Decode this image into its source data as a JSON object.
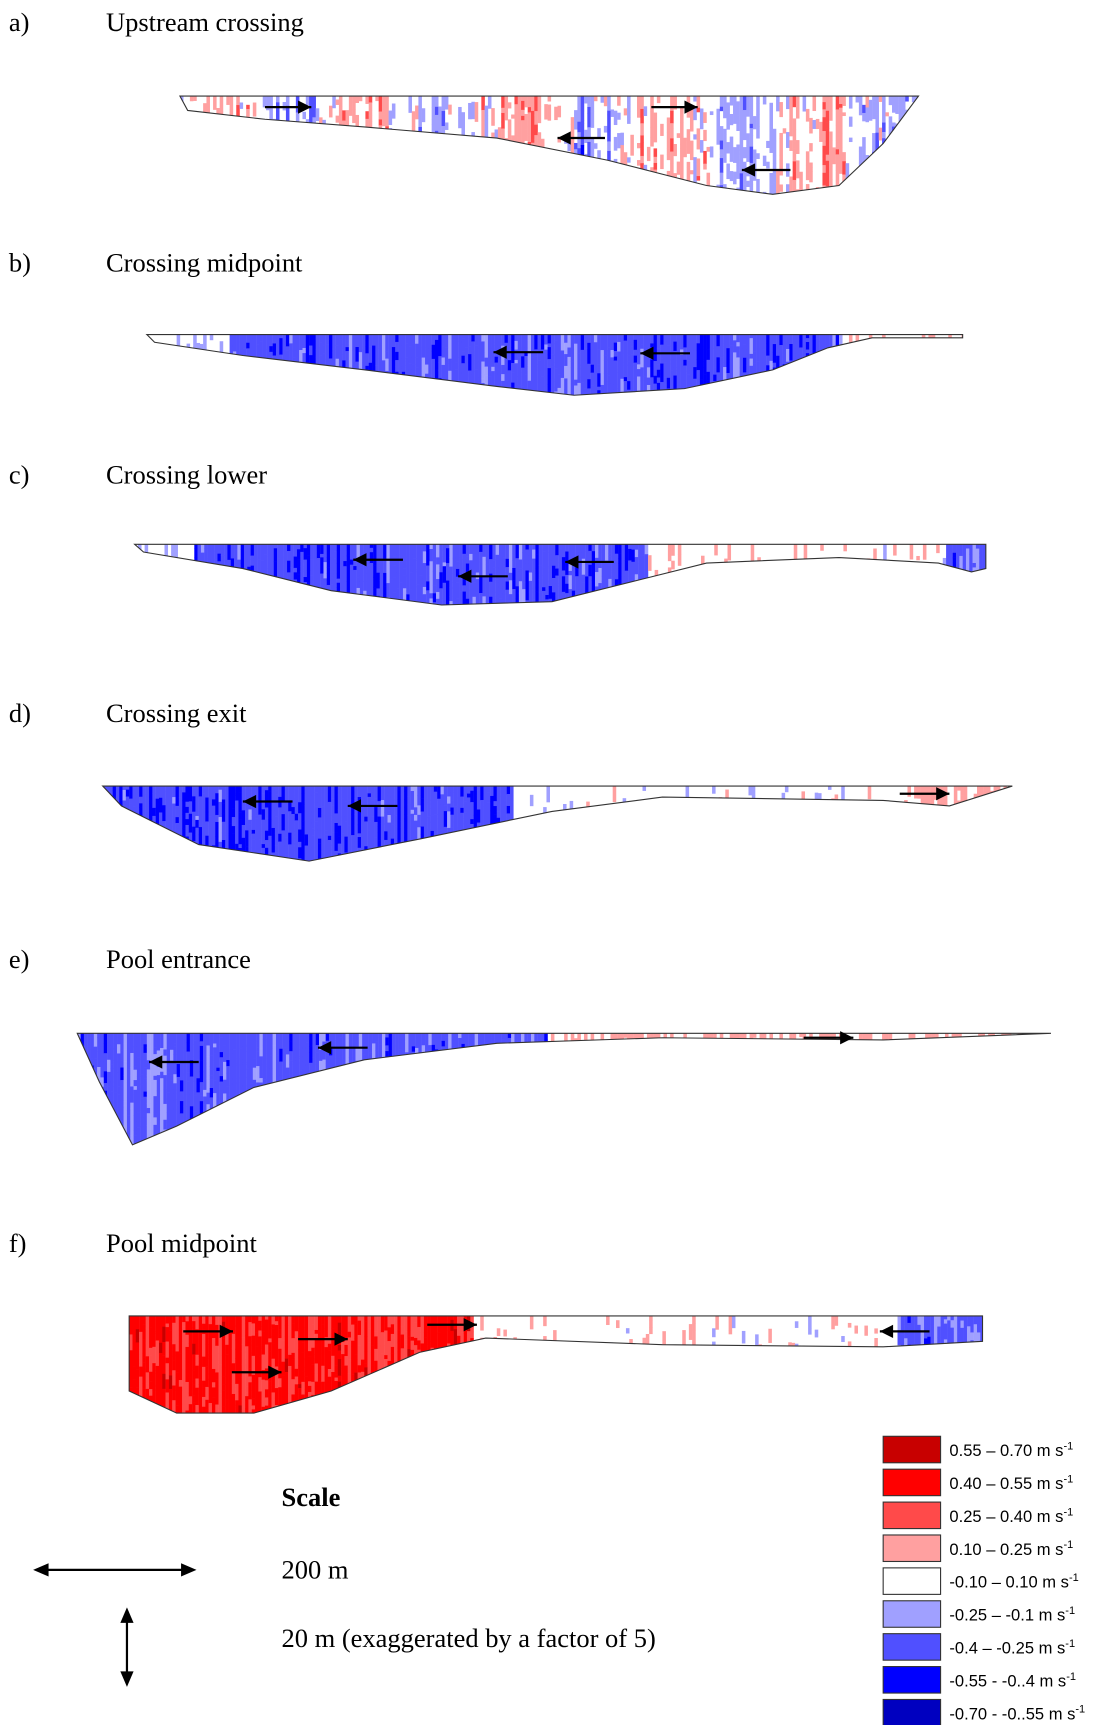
{
  "panels": [
    {
      "letter": "a)",
      "title": "Upstream crossing"
    },
    {
      "letter": "b)",
      "title": "Crossing midpoint"
    },
    {
      "letter": "c)",
      "title": "Crossing lower"
    },
    {
      "letter": "d)",
      "title": "Crossing exit"
    },
    {
      "letter": "e)",
      "title": "Pool entrance"
    },
    {
      "letter": "f)",
      "title": "Pool midpoint"
    }
  ],
  "scale": {
    "title": "Scale",
    "horizontal": "200 m",
    "vertical": "20 m (exaggerated by a factor of 5)"
  },
  "legend": [
    {
      "label": "0.55 – 0.70 m s",
      "exponent": "-1",
      "color": "#c80000"
    },
    {
      "label": "0.40 – 0.55 m s",
      "exponent": "-1",
      "color": "#ff0000"
    },
    {
      "label": "0.25 – 0.40 m s",
      "exponent": "-1",
      "color": "#ff4a4a"
    },
    {
      "label": "0.10 – 0.25 m s",
      "exponent": "-1",
      "color": "#ffa0a0"
    },
    {
      "label": "-0.10 – 0.10 m s",
      "exponent": "-1",
      "color": "#ffffff"
    },
    {
      "label": "-0.25 – -0.1 m s",
      "exponent": "-1",
      "color": "#a0a0ff"
    },
    {
      "label": "-0.4 – -0.25 m s",
      "exponent": "-1",
      "color": "#5050ff"
    },
    {
      "label": "-0.55  - -0..4 m s",
      "exponent": "-1",
      "color": "#0000ff"
    },
    {
      "label": "-0.70  - -0..55 m s",
      "exponent": "-1",
      "color": "#0000c0"
    }
  ]
}
